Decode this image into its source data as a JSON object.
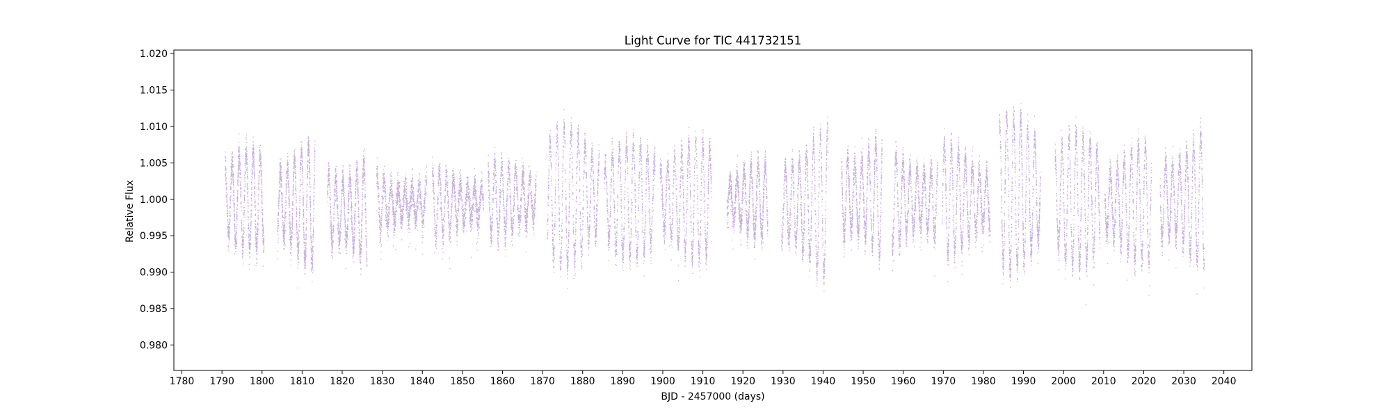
{
  "chart_data": {
    "type": "scatter",
    "title": "Light Curve for TIC 441732151",
    "xlabel": "BJD - 2457000 (days)",
    "ylabel": "Relative Flux",
    "xlim": [
      1778,
      2047
    ],
    "ylim": [
      0.9765,
      1.0205
    ],
    "xticks": [
      1780,
      1790,
      1800,
      1810,
      1820,
      1830,
      1840,
      1850,
      1860,
      1870,
      1880,
      1890,
      1900,
      1910,
      1920,
      1930,
      1940,
      1950,
      1960,
      1970,
      1980,
      1990,
      2000,
      2010,
      2020,
      2030,
      2040
    ],
    "yticks": [
      0.98,
      0.985,
      0.99,
      0.995,
      1.0,
      1.005,
      1.01,
      1.015,
      1.02
    ],
    "ytick_labels": [
      "0.980",
      "0.985",
      "0.990",
      "0.995",
      "1.000",
      "1.005",
      "1.010",
      "1.015",
      "1.020"
    ],
    "grid": false,
    "color": "#9467bd",
    "segments": [
      {
        "x": [
          1790.7,
          1800.4
        ],
        "center": 1.0,
        "amp": 0.0068
      },
      {
        "x": [
          1803.8,
          1813.1
        ],
        "center": 0.9995,
        "amp": 0.0085
      },
      {
        "x": [
          1816.2,
          1826.1
        ],
        "center": 0.9985,
        "amp": 0.0085
      },
      {
        "x": [
          1828.5,
          1841.0
        ],
        "center": 0.9995,
        "amp": 0.004
      },
      {
        "x": [
          1842.4,
          1855.2
        ],
        "center": 0.9995,
        "amp": 0.0045
      },
      {
        "x": [
          1856.3,
          1868.3
        ],
        "center": 1.0,
        "amp": 0.005
      },
      {
        "x": [
          1871.1,
          1884.0
        ],
        "center": 1.0005,
        "amp": 0.0095
      },
      {
        "x": [
          1885.3,
          1898.0
        ],
        "center": 1.0,
        "amp": 0.008
      },
      {
        "x": [
          1899.2,
          1912.0
        ],
        "center": 1.0,
        "amp": 0.008
      },
      {
        "x": [
          1915.9,
          1926.1
        ],
        "center": 1.0,
        "amp": 0.005
      },
      {
        "x": [
          1929.5,
          1941.2
        ],
        "center": 0.9995,
        "amp": 0.01
      },
      {
        "x": [
          1944.5,
          1954.6
        ],
        "center": 1.0005,
        "amp": 0.0095
      },
      {
        "x": [
          1957.1,
          1968.5
        ],
        "center": 1.0,
        "amp": 0.0075
      },
      {
        "x": [
          1969.6,
          1981.6
        ],
        "center": 1.0,
        "amp": 0.0075
      },
      {
        "x": [
          1983.9,
          1994.1
        ],
        "center": 1.001,
        "amp": 0.0105
      },
      {
        "x": [
          1997.8,
          2009.0
        ],
        "center": 1.0,
        "amp": 0.009
      },
      {
        "x": [
          2010.2,
          2021.8
        ],
        "center": 0.9995,
        "amp": 0.008
      },
      {
        "x": [
          2024.0,
          2035.0
        ],
        "center": 1.0,
        "amp": 0.0095
      }
    ]
  }
}
